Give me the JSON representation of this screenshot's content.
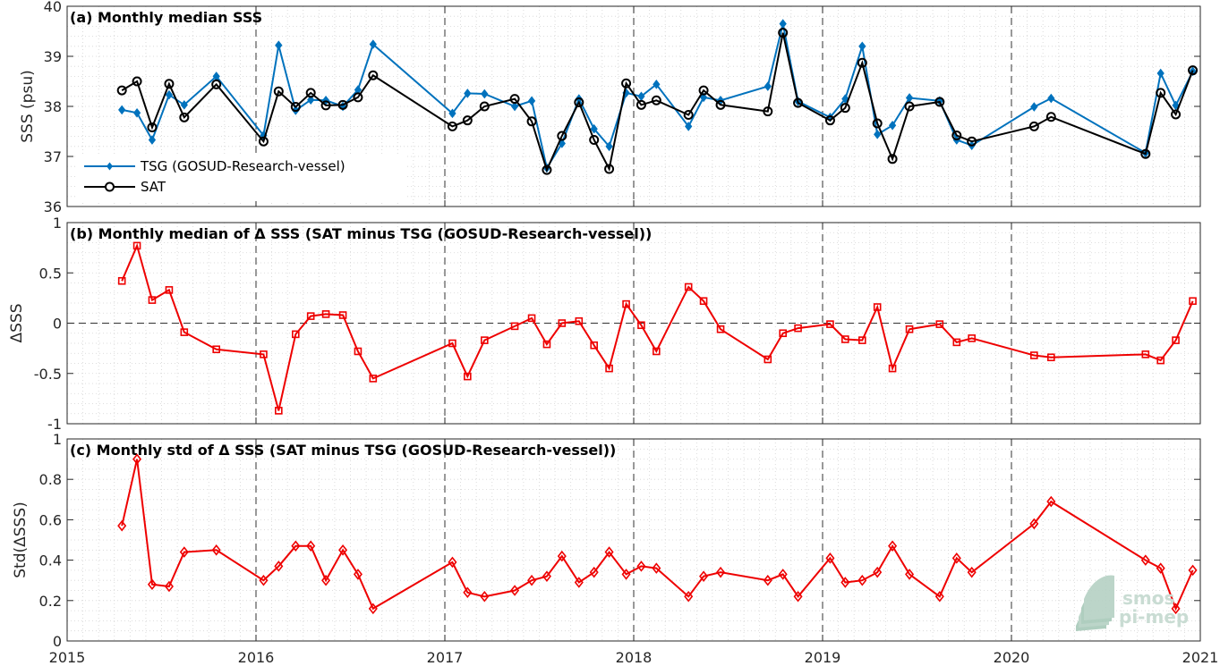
{
  "chart_data": [
    {
      "type": "line",
      "title": "(a) Monthly median SSS",
      "xlabel": "",
      "ylabel": "SSS (psu)",
      "xlim": [
        2015,
        2021
      ],
      "ylim": [
        36,
        40
      ],
      "yticks": [
        "36",
        "37",
        "38",
        "39",
        "40"
      ],
      "grid": "minor dotted",
      "legend_placement": "lower-left",
      "series": [
        {
          "name": "TSG (GOSUD-Research-vessel)",
          "color": "#0072bd",
          "marker": "diamond-filled",
          "points": [
            [
              2015.29,
              37.93
            ],
            [
              2015.37,
              37.87
            ],
            [
              2015.45,
              37.33
            ],
            [
              2015.54,
              38.23
            ],
            [
              2015.62,
              38.03
            ],
            [
              2015.79,
              38.6
            ],
            [
              2016.04,
              37.42
            ],
            [
              2016.12,
              39.22
            ],
            [
              2016.21,
              37.92
            ],
            [
              2016.29,
              38.13
            ],
            [
              2016.37,
              38.12
            ],
            [
              2016.46,
              38.0
            ],
            [
              2016.54,
              38.33
            ],
            [
              2016.62,
              39.24
            ],
            [
              2017.04,
              37.86
            ],
            [
              2017.12,
              38.26
            ],
            [
              2017.21,
              38.25
            ],
            [
              2017.37,
              38.0
            ],
            [
              2017.46,
              38.11
            ],
            [
              2017.54,
              36.77
            ],
            [
              2017.62,
              37.26
            ],
            [
              2017.71,
              38.15
            ],
            [
              2017.79,
              37.55
            ],
            [
              2017.87,
              37.2
            ],
            [
              2017.96,
              38.27
            ],
            [
              2018.04,
              38.2
            ],
            [
              2018.12,
              38.44
            ],
            [
              2018.29,
              37.6
            ],
            [
              2018.37,
              38.18
            ],
            [
              2018.46,
              38.12
            ],
            [
              2018.71,
              38.4
            ],
            [
              2018.79,
              39.65
            ],
            [
              2018.87,
              38.1
            ],
            [
              2019.04,
              37.78
            ],
            [
              2019.12,
              38.15
            ],
            [
              2019.21,
              39.2
            ],
            [
              2019.29,
              37.44
            ],
            [
              2019.37,
              37.62
            ],
            [
              2019.46,
              38.17
            ],
            [
              2019.62,
              38.11
            ],
            [
              2019.71,
              37.33
            ],
            [
              2019.79,
              37.22
            ],
            [
              2020.12,
              37.99
            ],
            [
              2020.21,
              38.16
            ],
            [
              2020.71,
              37.07
            ],
            [
              2020.79,
              38.66
            ],
            [
              2020.87,
              38.02
            ],
            [
              2020.96,
              38.7
            ]
          ]
        },
        {
          "name": "SAT",
          "color": "#000000",
          "marker": "circle-open",
          "points": [
            [
              2015.29,
              38.32
            ],
            [
              2015.37,
              38.5
            ],
            [
              2015.45,
              37.58
            ],
            [
              2015.54,
              38.45
            ],
            [
              2015.62,
              37.78
            ],
            [
              2015.79,
              38.44
            ],
            [
              2016.04,
              37.3
            ],
            [
              2016.12,
              38.3
            ],
            [
              2016.21,
              37.99
            ],
            [
              2016.29,
              38.27
            ],
            [
              2016.37,
              38.02
            ],
            [
              2016.46,
              38.03
            ],
            [
              2016.54,
              38.18
            ],
            [
              2016.62,
              38.62
            ],
            [
              2017.04,
              37.6
            ],
            [
              2017.12,
              37.72
            ],
            [
              2017.21,
              38.0
            ],
            [
              2017.37,
              38.15
            ],
            [
              2017.46,
              37.7
            ],
            [
              2017.54,
              36.73
            ],
            [
              2017.62,
              37.41
            ],
            [
              2017.71,
              38.08
            ],
            [
              2017.79,
              37.33
            ],
            [
              2017.87,
              36.75
            ],
            [
              2017.96,
              38.46
            ],
            [
              2018.04,
              38.03
            ],
            [
              2018.12,
              38.12
            ],
            [
              2018.29,
              37.83
            ],
            [
              2018.37,
              38.32
            ],
            [
              2018.46,
              38.03
            ],
            [
              2018.71,
              37.9
            ],
            [
              2018.79,
              39.47
            ],
            [
              2018.87,
              38.07
            ],
            [
              2019.04,
              37.72
            ],
            [
              2019.12,
              37.97
            ],
            [
              2019.21,
              38.87
            ],
            [
              2019.29,
              37.66
            ],
            [
              2019.37,
              36.95
            ],
            [
              2019.46,
              38.0
            ],
            [
              2019.62,
              38.09
            ],
            [
              2019.71,
              37.42
            ],
            [
              2019.79,
              37.3
            ],
            [
              2020.12,
              37.6
            ],
            [
              2020.21,
              37.79
            ],
            [
              2020.71,
              37.05
            ],
            [
              2020.79,
              38.27
            ],
            [
              2020.87,
              37.84
            ],
            [
              2020.96,
              38.72
            ]
          ]
        }
      ]
    },
    {
      "type": "line",
      "title": "(b) Monthly median of Δ SSS (SAT minus TSG (GOSUD-Research-vessel))",
      "xlabel": "",
      "ylabel": "ΔSSS",
      "xlim": [
        2015,
        2021
      ],
      "ylim": [
        -1,
        1
      ],
      "yticks": [
        "-1",
        "-0.5",
        "0",
        "0.5",
        "1"
      ],
      "grid": "minor dotted",
      "zero_line": "dashed",
      "series": [
        {
          "color": "#ee0000",
          "marker": "square-open",
          "points": [
            [
              2015.29,
              0.42
            ],
            [
              2015.37,
              0.77
            ],
            [
              2015.45,
              0.23
            ],
            [
              2015.54,
              0.33
            ],
            [
              2015.62,
              -0.09
            ],
            [
              2015.79,
              -0.26
            ],
            [
              2016.04,
              -0.31
            ],
            [
              2016.12,
              -0.87
            ],
            [
              2016.21,
              -0.11
            ],
            [
              2016.29,
              0.07
            ],
            [
              2016.37,
              0.09
            ],
            [
              2016.46,
              0.08
            ],
            [
              2016.54,
              -0.28
            ],
            [
              2016.62,
              -0.55
            ],
            [
              2017.04,
              -0.2
            ],
            [
              2017.12,
              -0.53
            ],
            [
              2017.21,
              -0.17
            ],
            [
              2017.37,
              -0.03
            ],
            [
              2017.46,
              0.05
            ],
            [
              2017.54,
              -0.21
            ],
            [
              2017.62,
              0.0
            ],
            [
              2017.71,
              0.02
            ],
            [
              2017.79,
              -0.22
            ],
            [
              2017.87,
              -0.45
            ],
            [
              2017.96,
              0.19
            ],
            [
              2018.04,
              -0.02
            ],
            [
              2018.12,
              -0.28
            ],
            [
              2018.29,
              0.36
            ],
            [
              2018.37,
              0.22
            ],
            [
              2018.46,
              -0.06
            ],
            [
              2018.71,
              -0.36
            ],
            [
              2018.79,
              -0.1
            ],
            [
              2018.87,
              -0.05
            ],
            [
              2019.04,
              -0.01
            ],
            [
              2019.12,
              -0.16
            ],
            [
              2019.21,
              -0.17
            ],
            [
              2019.29,
              0.16
            ],
            [
              2019.37,
              -0.45
            ],
            [
              2019.46,
              -0.06
            ],
            [
              2019.62,
              -0.01
            ],
            [
              2019.71,
              -0.19
            ],
            [
              2019.79,
              -0.15
            ],
            [
              2020.12,
              -0.32
            ],
            [
              2020.21,
              -0.34
            ],
            [
              2020.71,
              -0.31
            ],
            [
              2020.79,
              -0.37
            ],
            [
              2020.87,
              -0.17
            ],
            [
              2020.96,
              0.22
            ]
          ]
        }
      ]
    },
    {
      "type": "line",
      "title": "(c) Monthly std of Δ SSS (SAT minus TSG (GOSUD-Research-vessel))",
      "xlabel": "",
      "ylabel": "Std(ΔSSS)",
      "xlim": [
        2015,
        2021
      ],
      "ylim": [
        0,
        1
      ],
      "yticks": [
        "0",
        "0.2",
        "0.4",
        "0.6",
        "0.8",
        "1"
      ],
      "xticks": [
        "2015",
        "2016",
        "2017",
        "2018",
        "2019",
        "2020",
        "2021"
      ],
      "grid": "minor dotted",
      "series": [
        {
          "color": "#ee0000",
          "marker": "diamond-open",
          "points": [
            [
              2015.29,
              0.57
            ],
            [
              2015.37,
              0.9
            ],
            [
              2015.45,
              0.28
            ],
            [
              2015.54,
              0.27
            ],
            [
              2015.62,
              0.44
            ],
            [
              2015.79,
              0.45
            ],
            [
              2016.04,
              0.3
            ],
            [
              2016.12,
              0.37
            ],
            [
              2016.21,
              0.47
            ],
            [
              2016.29,
              0.47
            ],
            [
              2016.37,
              0.3
            ],
            [
              2016.46,
              0.45
            ],
            [
              2016.54,
              0.33
            ],
            [
              2016.62,
              0.16
            ],
            [
              2017.04,
              0.39
            ],
            [
              2017.12,
              0.24
            ],
            [
              2017.21,
              0.22
            ],
            [
              2017.37,
              0.25
            ],
            [
              2017.46,
              0.3
            ],
            [
              2017.54,
              0.32
            ],
            [
              2017.62,
              0.42
            ],
            [
              2017.71,
              0.29
            ],
            [
              2017.79,
              0.34
            ],
            [
              2017.87,
              0.44
            ],
            [
              2017.96,
              0.33
            ],
            [
              2018.04,
              0.37
            ],
            [
              2018.12,
              0.36
            ],
            [
              2018.29,
              0.22
            ],
            [
              2018.37,
              0.32
            ],
            [
              2018.46,
              0.34
            ],
            [
              2018.71,
              0.3
            ],
            [
              2018.79,
              0.33
            ],
            [
              2018.87,
              0.22
            ],
            [
              2019.04,
              0.41
            ],
            [
              2019.12,
              0.29
            ],
            [
              2019.21,
              0.3
            ],
            [
              2019.29,
              0.34
            ],
            [
              2019.37,
              0.47
            ],
            [
              2019.46,
              0.33
            ],
            [
              2019.62,
              0.22
            ],
            [
              2019.71,
              0.41
            ],
            [
              2019.79,
              0.34
            ],
            [
              2020.12,
              0.58
            ],
            [
              2020.21,
              0.69
            ],
            [
              2020.71,
              0.4
            ],
            [
              2020.79,
              0.36
            ],
            [
              2020.87,
              0.16
            ],
            [
              2020.96,
              0.35
            ]
          ]
        }
      ]
    }
  ],
  "logo": {
    "line1": "smos",
    "line2": "pi-mep",
    "color": "#c9dcd3"
  }
}
